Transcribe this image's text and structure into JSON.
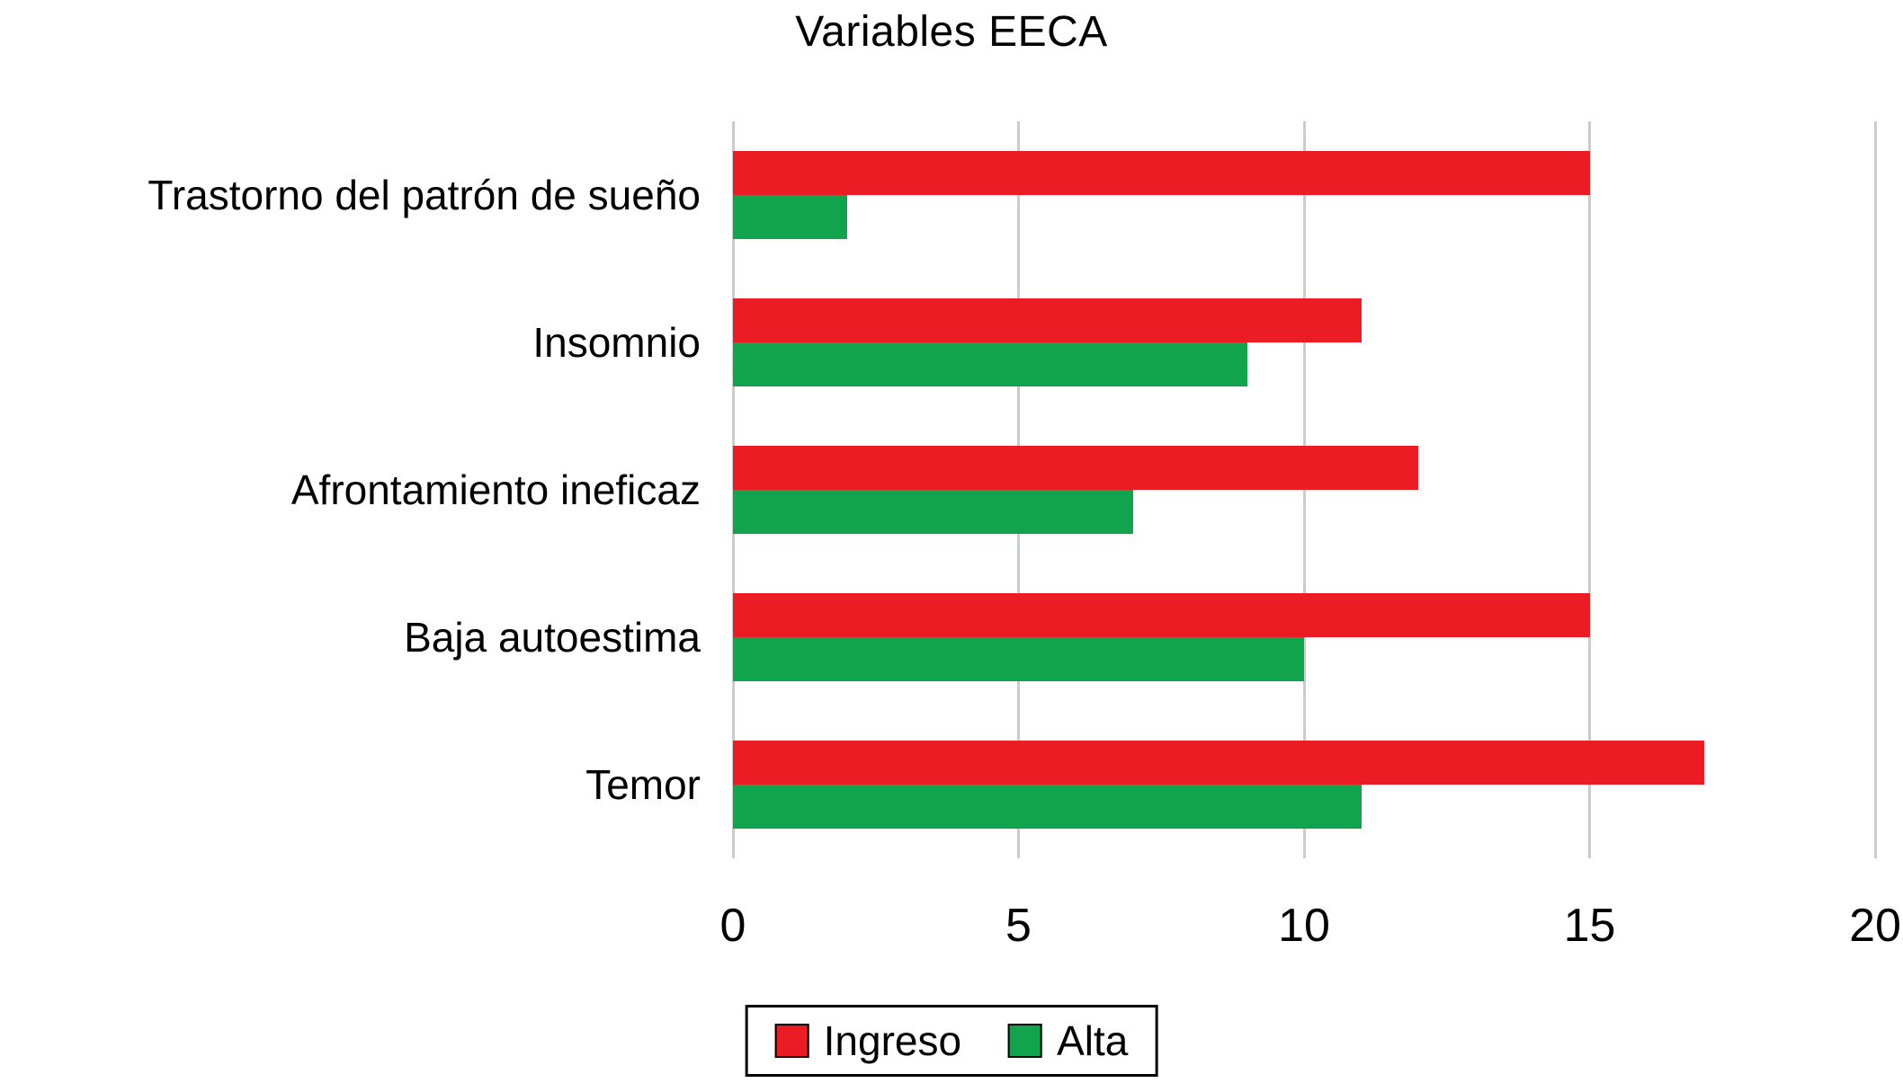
{
  "chart_data": {
    "type": "bar",
    "orientation": "horizontal",
    "title": "Variables EECA",
    "categories": [
      "Trastorno del patrón de sueño",
      "Insomnio",
      "Afrontamiento ineficaz",
      "Baja autoestima",
      "Temor"
    ],
    "series": [
      {
        "name": "Ingreso",
        "color": "#ec1c24",
        "values": [
          15,
          11,
          12,
          15,
          17
        ]
      },
      {
        "name": "Alta",
        "color": "#12a44c",
        "values": [
          2,
          9,
          7,
          10,
          11
        ]
      }
    ],
    "xlim": [
      0,
      20
    ],
    "xticks": [
      0,
      5,
      10,
      15,
      20
    ],
    "grid": "vertical",
    "gridline_color": "#cccccc",
    "legend_position": "bottom",
    "background": "#ffffff"
  }
}
